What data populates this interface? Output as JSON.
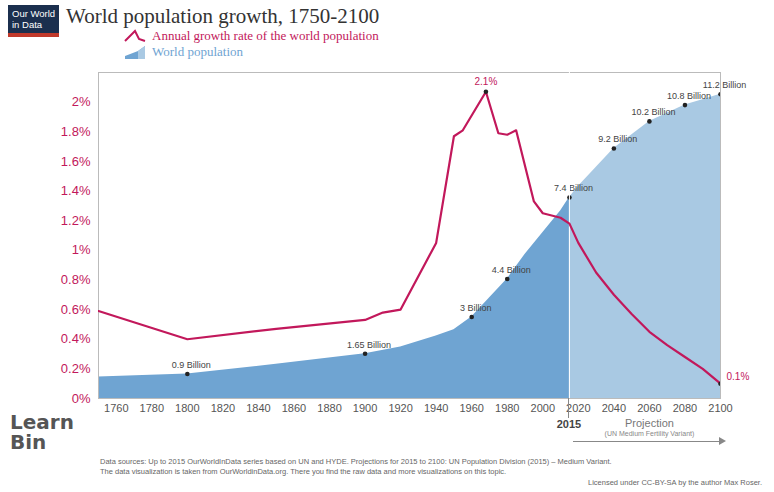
{
  "chart_data": {
    "type": "line",
    "title": "World population growth, 1750-2100",
    "logo": "Our World in Data",
    "watermark": "Learn Bin",
    "xlim": [
      1750,
      2100
    ],
    "xticks": [
      1760,
      1780,
      1800,
      1820,
      1840,
      1860,
      1880,
      1900,
      1920,
      1940,
      1960,
      1980,
      2000,
      2020,
      2040,
      2060,
      2080,
      2100
    ],
    "ylim": [
      0,
      2.2
    ],
    "yticks": [
      {
        "value": 0,
        "label": "0%"
      },
      {
        "value": 0.2,
        "label": "0.2%"
      },
      {
        "value": 0.4,
        "label": "0.4%"
      },
      {
        "value": 0.6,
        "label": "0.6%"
      },
      {
        "value": 0.8,
        "label": "0.8%"
      },
      {
        "value": 1,
        "label": "1%"
      },
      {
        "value": 1.2,
        "label": "1.2%"
      },
      {
        "value": 1.4,
        "label": "1.4%"
      },
      {
        "value": 1.6,
        "label": "1.6%"
      },
      {
        "value": 1.8,
        "label": "1.8%"
      },
      {
        "value": 2,
        "label": "2%"
      }
    ],
    "y2lim": [
      0,
      12
    ],
    "y2ticks": [],
    "grid": false,
    "legend": "top-left",
    "projection": {
      "x": 2015,
      "text": "Projection",
      "note": "(UN Medium Fertility Variant)",
      "color": "#a9c9e3"
    },
    "series": [
      {
        "name": "Annual growth rate of the world population",
        "type": "line",
        "color": "#c2185b",
        "x": [
          1750,
          1800,
          1850,
          1900,
          1910,
          1920,
          1940,
          1950,
          1955,
          1968,
          1975,
          1980,
          1985,
          1995,
          2000,
          2010,
          2015,
          2020,
          2030,
          2040,
          2050,
          2060,
          2070,
          2080,
          2090,
          2100
        ],
        "values": [
          0.59,
          0.4,
          0.47,
          0.53,
          0.58,
          0.6,
          1.05,
          1.77,
          1.81,
          2.07,
          1.79,
          1.78,
          1.81,
          1.33,
          1.25,
          1.22,
          1.18,
          1.05,
          0.85,
          0.7,
          0.57,
          0.45,
          0.36,
          0.28,
          0.2,
          0.1
        ],
        "value_labels": [
          null,
          null,
          null,
          null,
          null,
          null,
          null,
          null,
          null,
          "2.1%",
          null,
          null,
          null,
          null,
          null,
          null,
          null,
          null,
          null,
          null,
          null,
          null,
          null,
          null,
          null,
          "0.1%"
        ]
      },
      {
        "name": "World population",
        "type": "area",
        "axis": "y2",
        "color": "#6fa4d2",
        "x": [
          1750,
          1800,
          1850,
          1900,
          1920,
          1940,
          1950,
          1960,
          1970,
          1980,
          1990,
          2000,
          2010,
          2015,
          2020,
          2030,
          2040,
          2050,
          2060,
          2070,
          2080,
          2090,
          2100
        ],
        "values": [
          0.79,
          0.9,
          1.26,
          1.65,
          1.9,
          2.3,
          2.53,
          3,
          3.7,
          4.4,
          5.3,
          6.1,
          6.9,
          7.4,
          7.8,
          8.5,
          9.2,
          9.7,
          10.2,
          10.5,
          10.8,
          11.0,
          11.2
        ],
        "value_labels": [
          null,
          "0.9 Billion",
          null,
          "1.65 Billion",
          null,
          null,
          null,
          "3 Billion",
          null,
          "4.4 Billion",
          null,
          null,
          null,
          "7.4 Billion",
          null,
          null,
          "9.2 Billion",
          null,
          "10.2 Billion",
          null,
          "10.8 Billion",
          null,
          "11.2 Billion"
        ]
      }
    ],
    "caption": [
      "Data sources: Up to 2015 OurWorldInData series based on UN and HYDE. Projections for 2015 to 2100: UN Population Division (2015) – Medium Variant.",
      "The data visualization is taken from OurWorldinData.org. There you find the raw data and more visualizations on this topic."
    ],
    "license": "Licensed under CC-BY-SA by the author Max Roser."
  }
}
